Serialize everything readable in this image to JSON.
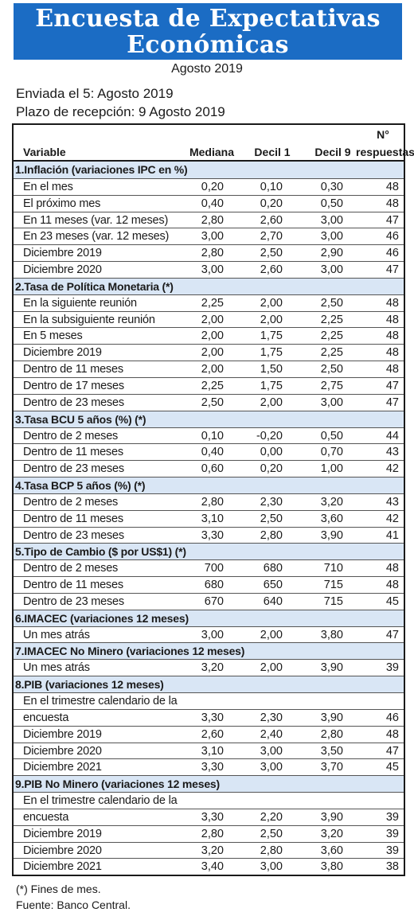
{
  "header": {
    "title_line1": "Encuesta de Expectativas",
    "title_line2": "Económicas",
    "month": "Agosto 2019"
  },
  "info": {
    "sent": "Enviada el 5: Agosto 2019",
    "deadline": "Plazo de recepción: 9 Agosto 2019"
  },
  "columns": {
    "variable": "Variable",
    "mediana": "Mediana",
    "decil1": "Decil 1",
    "decil9": "Decil 9",
    "n_line1": "N°",
    "n_line2": "respuestas"
  },
  "rows": [
    {
      "label": "1.Inflación (variaciones IPC en %)",
      "section": true
    },
    {
      "label": "En el mes",
      "med": "0,20",
      "d1": "0,10",
      "d9": "0,30",
      "n": "48"
    },
    {
      "label": "El próximo mes",
      "med": "0,40",
      "d1": "0,20",
      "d9": "0,50",
      "n": "48"
    },
    {
      "label": "En 11 meses (var. 12 meses)",
      "med": "2,80",
      "d1": "2,60",
      "d9": "3,00",
      "n": "47"
    },
    {
      "label": "En 23 meses (var. 12 meses)",
      "med": "3,00",
      "d1": "2,70",
      "d9": "3,00",
      "n": "46"
    },
    {
      "label": "Diciembre 2019",
      "med": "2,80",
      "d1": "2,50",
      "d9": "2,90",
      "n": "46"
    },
    {
      "label": "Diciembre 2020",
      "med": "3,00",
      "d1": "2,60",
      "d9": "3,00",
      "n": "47"
    },
    {
      "label": "2.Tasa de Política Monetaria  (*)",
      "section": true
    },
    {
      "label": "En la siguiente reunión",
      "med": "2,25",
      "d1": "2,00",
      "d9": "2,50",
      "n": "48"
    },
    {
      "label": "En la subsiguiente reunión",
      "med": "2,00",
      "d1": "2,00",
      "d9": "2,25",
      "n": "48"
    },
    {
      "label": "En 5 meses",
      "med": "2,00",
      "d1": "1,75",
      "d9": "2,25",
      "n": "48"
    },
    {
      "label": "Diciembre 2019",
      "med": "2,00",
      "d1": "1,75",
      "d9": "2,25",
      "n": "48"
    },
    {
      "label": "Dentro de 11 meses",
      "med": "2,00",
      "d1": "1,50",
      "d9": "2,50",
      "n": "48"
    },
    {
      "label": "Dentro de 17 meses",
      "med": "2,25",
      "d1": "1,75",
      "d9": "2,75",
      "n": "47"
    },
    {
      "label": "Dentro de 23 meses",
      "med": "2,50",
      "d1": "2,00",
      "d9": "3,00",
      "n": "47"
    },
    {
      "label": "3.Tasa BCU 5 años  (%)  (*)",
      "section": true
    },
    {
      "label": "Dentro de 2 meses",
      "med": "0,10",
      "d1": "-0,20",
      "d9": "0,50",
      "n": "44"
    },
    {
      "label": "Dentro de 11 meses",
      "med": "0,40",
      "d1": "0,00",
      "d9": "0,70",
      "n": "43"
    },
    {
      "label": "Dentro de 23 meses",
      "med": "0,60",
      "d1": "0,20",
      "d9": "1,00",
      "n": "42"
    },
    {
      "label": "4.Tasa BCP 5 años  (%) (*)",
      "section": true
    },
    {
      "label": "Dentro de 2 meses",
      "med": "2,80",
      "d1": "2,30",
      "d9": "3,20",
      "n": "43"
    },
    {
      "label": "Dentro de 11 meses",
      "med": "3,10",
      "d1": "2,50",
      "d9": "3,60",
      "n": "42"
    },
    {
      "label": "Dentro de 23 meses",
      "med": "3,30",
      "d1": "2,80",
      "d9": "3,90",
      "n": "41"
    },
    {
      "label": "5.Tipo de Cambio  ($ por US$1) (*)",
      "section": true
    },
    {
      "label": "Dentro de 2 meses",
      "med": "700",
      "d1": "680",
      "d9": "710",
      "n": "48"
    },
    {
      "label": "Dentro de 11 meses",
      "med": "680",
      "d1": "650",
      "d9": "715",
      "n": "48"
    },
    {
      "label": "Dentro de 23 meses",
      "med": "670",
      "d1": "640",
      "d9": "715",
      "n": "45"
    },
    {
      "label": "6.IMACEC  (variaciones 12 meses)",
      "section": true
    },
    {
      "label": "Un mes atrás",
      "med": "3,00",
      "d1": "2,00",
      "d9": "3,80",
      "n": "47"
    },
    {
      "label": "7.IMACEC No Minero (variaciones 12 meses)",
      "section": true
    },
    {
      "label": "Un mes atrás",
      "med": "3,20",
      "d1": "2,00",
      "d9": "3,90",
      "n": "39"
    },
    {
      "label": "8.PIB  (variaciones 12 meses)",
      "section": true
    },
    {
      "label": "En el trimestre calendario de la",
      "med": "",
      "d1": "",
      "d9": "",
      "n": ""
    },
    {
      "label": "encuesta",
      "med": "3,30",
      "d1": "2,30",
      "d9": "3,90",
      "n": "46"
    },
    {
      "label": "Diciembre 2019",
      "med": "2,60",
      "d1": "2,40",
      "d9": "2,80",
      "n": "48"
    },
    {
      "label": "Diciembre 2020",
      "med": "3,10",
      "d1": "3,00",
      "d9": "3,50",
      "n": "47"
    },
    {
      "label": "Diciembre 2021",
      "med": "3,30",
      "d1": "3,00",
      "d9": "3,70",
      "n": "45"
    },
    {
      "label": "9.PIB No Minero (variaciones 12 meses)",
      "section": true
    },
    {
      "label": "En el trimestre calendario de la",
      "med": "",
      "d1": "",
      "d9": "",
      "n": ""
    },
    {
      "label": "encuesta",
      "med": "3,30",
      "d1": "2,20",
      "d9": "3,90",
      "n": "39"
    },
    {
      "label": "Diciembre 2019",
      "med": "2,80",
      "d1": "2,50",
      "d9": "3,20",
      "n": "39"
    },
    {
      "label": "Diciembre 2020",
      "med": "3,20",
      "d1": "2,80",
      "d9": "3,60",
      "n": "39"
    },
    {
      "label": "Diciembre 2021",
      "med": "3,40",
      "d1": "3,00",
      "d9": "3,80",
      "n": "38"
    }
  ],
  "footer": {
    "note": "(*) Fines de mes.",
    "source": "Fuente: Banco Central."
  },
  "colors": {
    "banner": "#1b6cc4",
    "section_row": "#d9e6f5"
  }
}
